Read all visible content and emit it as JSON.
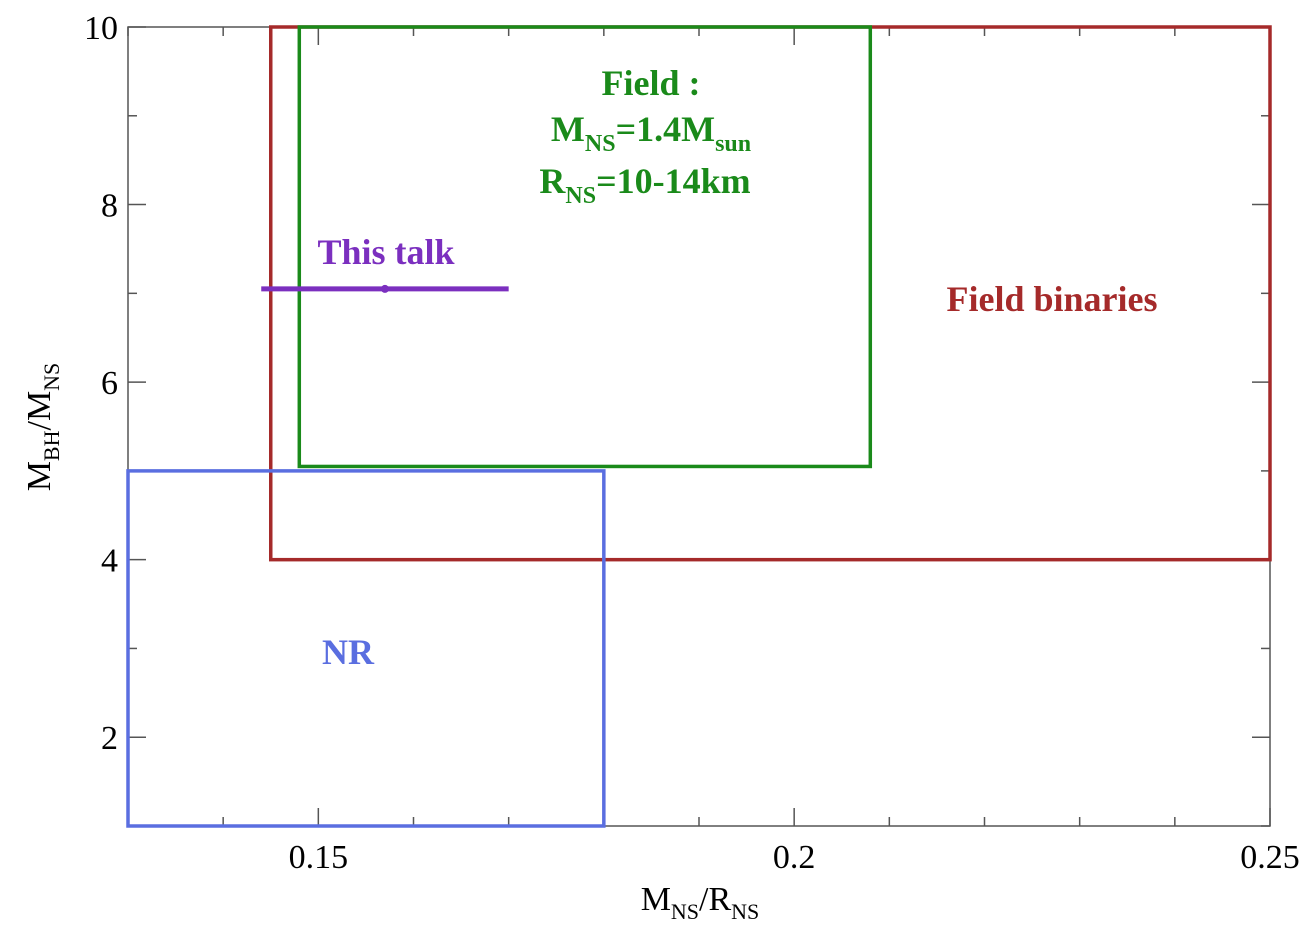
{
  "chart_data": {
    "type": "scatter",
    "xlabel": {
      "main": "M",
      "sub1": "NS",
      "mid": "/R",
      "sub2": "NS"
    },
    "ylabel": {
      "main": "M",
      "sub1": "BH",
      "mid": "/M",
      "sub2": "NS"
    },
    "xlim": [
      0.13,
      0.25
    ],
    "ylim": [
      1,
      10
    ],
    "xticks": [
      {
        "value": 0.15,
        "label": "0.15"
      },
      {
        "value": 0.2,
        "label": "0.2"
      },
      {
        "value": 0.25,
        "label": "0.25"
      }
    ],
    "yticks": [
      {
        "value": 2,
        "label": "2"
      },
      {
        "value": 4,
        "label": "4"
      },
      {
        "value": 6,
        "label": "6"
      },
      {
        "value": 8,
        "label": "8"
      },
      {
        "value": 10,
        "label": "10"
      }
    ],
    "x_minor_step": 0.01,
    "y_minor_step": 1,
    "grid": false,
    "regions": [
      {
        "name": "Field binaries",
        "x": [
          0.145,
          0.25
        ],
        "y": [
          4,
          10
        ],
        "color": "#a52a2a"
      },
      {
        "name": "Field",
        "x": [
          0.148,
          0.208
        ],
        "y": [
          5.05,
          10
        ],
        "color": "#1a8a1a"
      },
      {
        "name": "NR",
        "x": [
          0.13,
          0.18
        ],
        "y": [
          1,
          5
        ],
        "color": "#5a6ee0"
      }
    ],
    "segment": {
      "name": "This talk",
      "x": [
        0.144,
        0.17
      ],
      "y": 7.05,
      "marker_x": 0.157,
      "color": "#7b2fbf"
    },
    "annotations": {
      "field_binaries": "Field binaries",
      "nr": "NR",
      "this_talk": "This talk",
      "field_title": "Field :",
      "field_mass": {
        "main": "M",
        "sub": "NS",
        "eq": "=1.4M",
        "sub2": "sun"
      },
      "field_radius": {
        "main": "R",
        "sub": "NS",
        "eq": "=10-14km"
      }
    }
  }
}
